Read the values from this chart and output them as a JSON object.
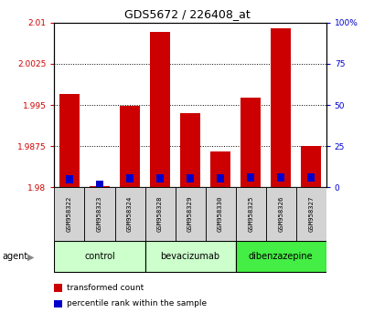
{
  "title": "GDS5672 / 226408_at",
  "samples": [
    "GSM958322",
    "GSM958323",
    "GSM958324",
    "GSM958328",
    "GSM958329",
    "GSM958330",
    "GSM958325",
    "GSM958326",
    "GSM958327"
  ],
  "transformed_count": [
    1.997,
    1.9803,
    1.9948,
    2.0083,
    1.9935,
    1.9865,
    1.9963,
    2.009,
    1.9875
  ],
  "percentile_rank": [
    5.0,
    1.5,
    5.5,
    5.5,
    5.5,
    5.5,
    6.0,
    6.0,
    6.0
  ],
  "ylim_left": [
    1.98,
    2.01
  ],
  "ylim_right": [
    0,
    100
  ],
  "yticks_left": [
    1.98,
    1.9875,
    1.995,
    2.0025,
    2.01
  ],
  "yticks_right": [
    0,
    25,
    50,
    75,
    100
  ],
  "ytick_labels_left": [
    "1.98",
    "1.9875",
    "1.995",
    "2.0025",
    "2.01"
  ],
  "ytick_labels_right": [
    "0",
    "25",
    "50",
    "75",
    "100%"
  ],
  "groups": [
    {
      "label": "control",
      "indices": [
        0,
        1,
        2
      ],
      "color": "#ccffcc"
    },
    {
      "label": "bevacizumab",
      "indices": [
        3,
        4,
        5
      ],
      "color": "#ccffcc"
    },
    {
      "label": "dibenzazepine",
      "indices": [
        6,
        7,
        8
      ],
      "color": "#44ee44"
    }
  ],
  "bar_color": "#cc0000",
  "blue_color": "#0000cc",
  "base_value": 1.98,
  "legend_items": [
    {
      "label": "transformed count",
      "color": "#cc0000"
    },
    {
      "label": "percentile rank within the sample",
      "color": "#0000cc"
    }
  ]
}
